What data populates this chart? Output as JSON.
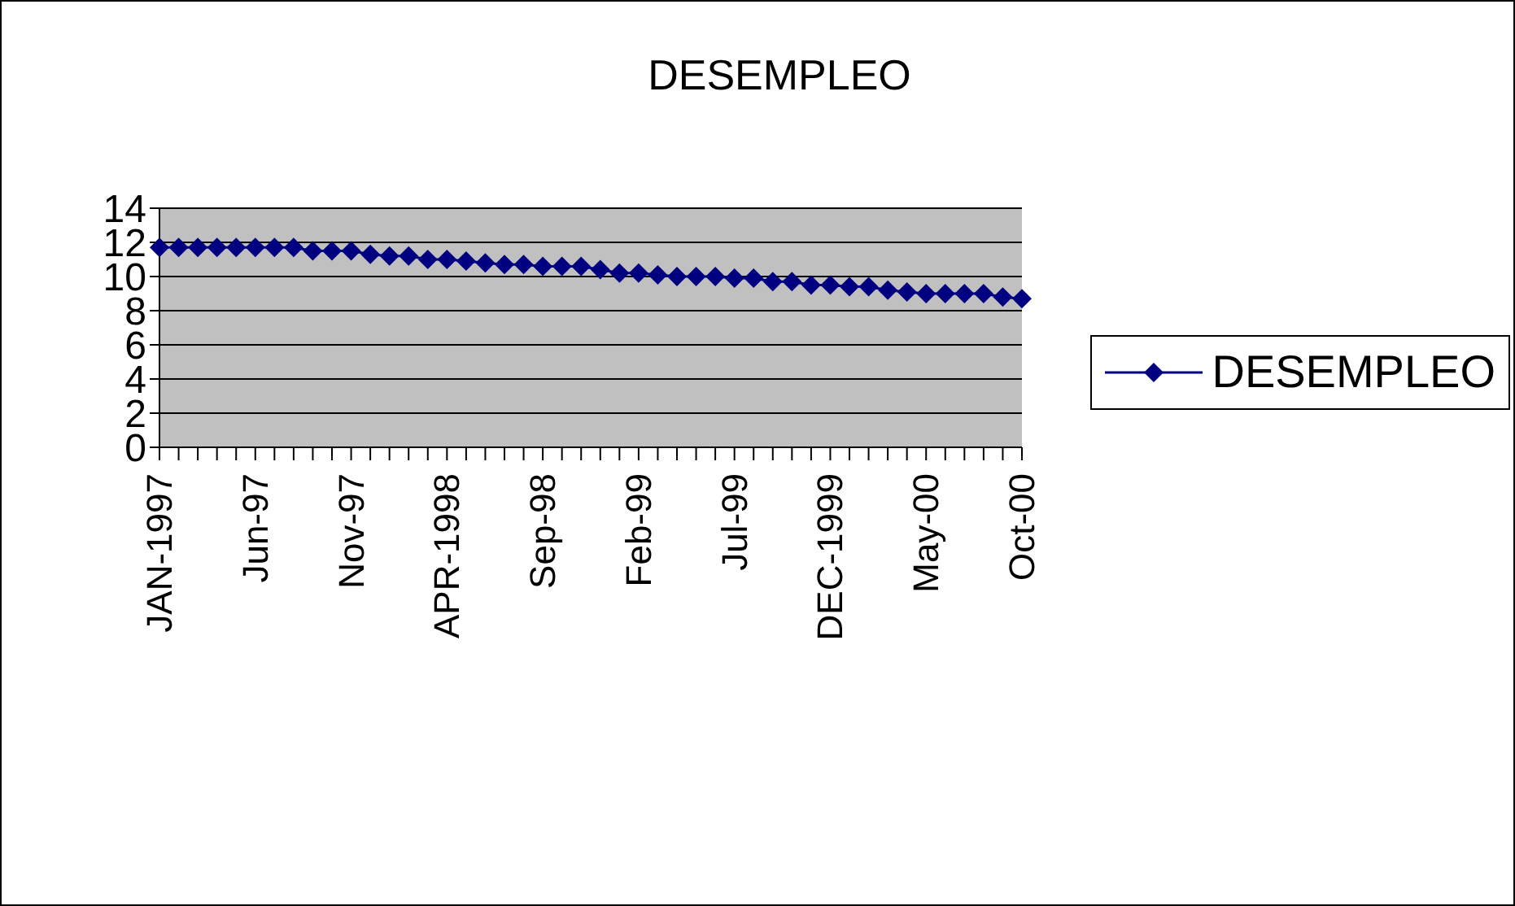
{
  "chart_data": {
    "type": "line",
    "title": "DESEMPLEO",
    "categories": [
      "JAN-1997",
      null,
      null,
      null,
      null,
      "Jun-97",
      null,
      null,
      null,
      null,
      "Nov-97",
      null,
      null,
      null,
      null,
      "APR-1998",
      null,
      null,
      null,
      null,
      "Sep-98",
      null,
      null,
      null,
      null,
      "Feb-99",
      null,
      null,
      null,
      null,
      "Jul-99",
      null,
      null,
      null,
      null,
      "DEC-1999",
      null,
      null,
      null,
      null,
      "May-00",
      null,
      null,
      null,
      null,
      "Oct-00"
    ],
    "series": [
      {
        "name": "DESEMPLEO",
        "color": "#000080",
        "values": [
          11.7,
          11.7,
          11.7,
          11.7,
          11.7,
          11.7,
          11.7,
          11.7,
          11.5,
          11.5,
          11.5,
          11.3,
          11.2,
          11.2,
          11.0,
          11.0,
          10.9,
          10.8,
          10.7,
          10.7,
          10.6,
          10.6,
          10.6,
          10.4,
          10.2,
          10.2,
          10.1,
          10.0,
          10.0,
          10.0,
          9.9,
          9.9,
          9.7,
          9.7,
          9.5,
          9.5,
          9.4,
          9.4,
          9.2,
          9.1,
          9.0,
          9.0,
          9.0,
          9.0,
          8.8,
          8.7
        ]
      }
    ],
    "ylim": [
      0,
      14
    ],
    "yticks": [
      0,
      2,
      4,
      6,
      8,
      10,
      12,
      14
    ],
    "grid": "y",
    "legend": "right",
    "marker": "diamond",
    "line_style": "solid"
  }
}
